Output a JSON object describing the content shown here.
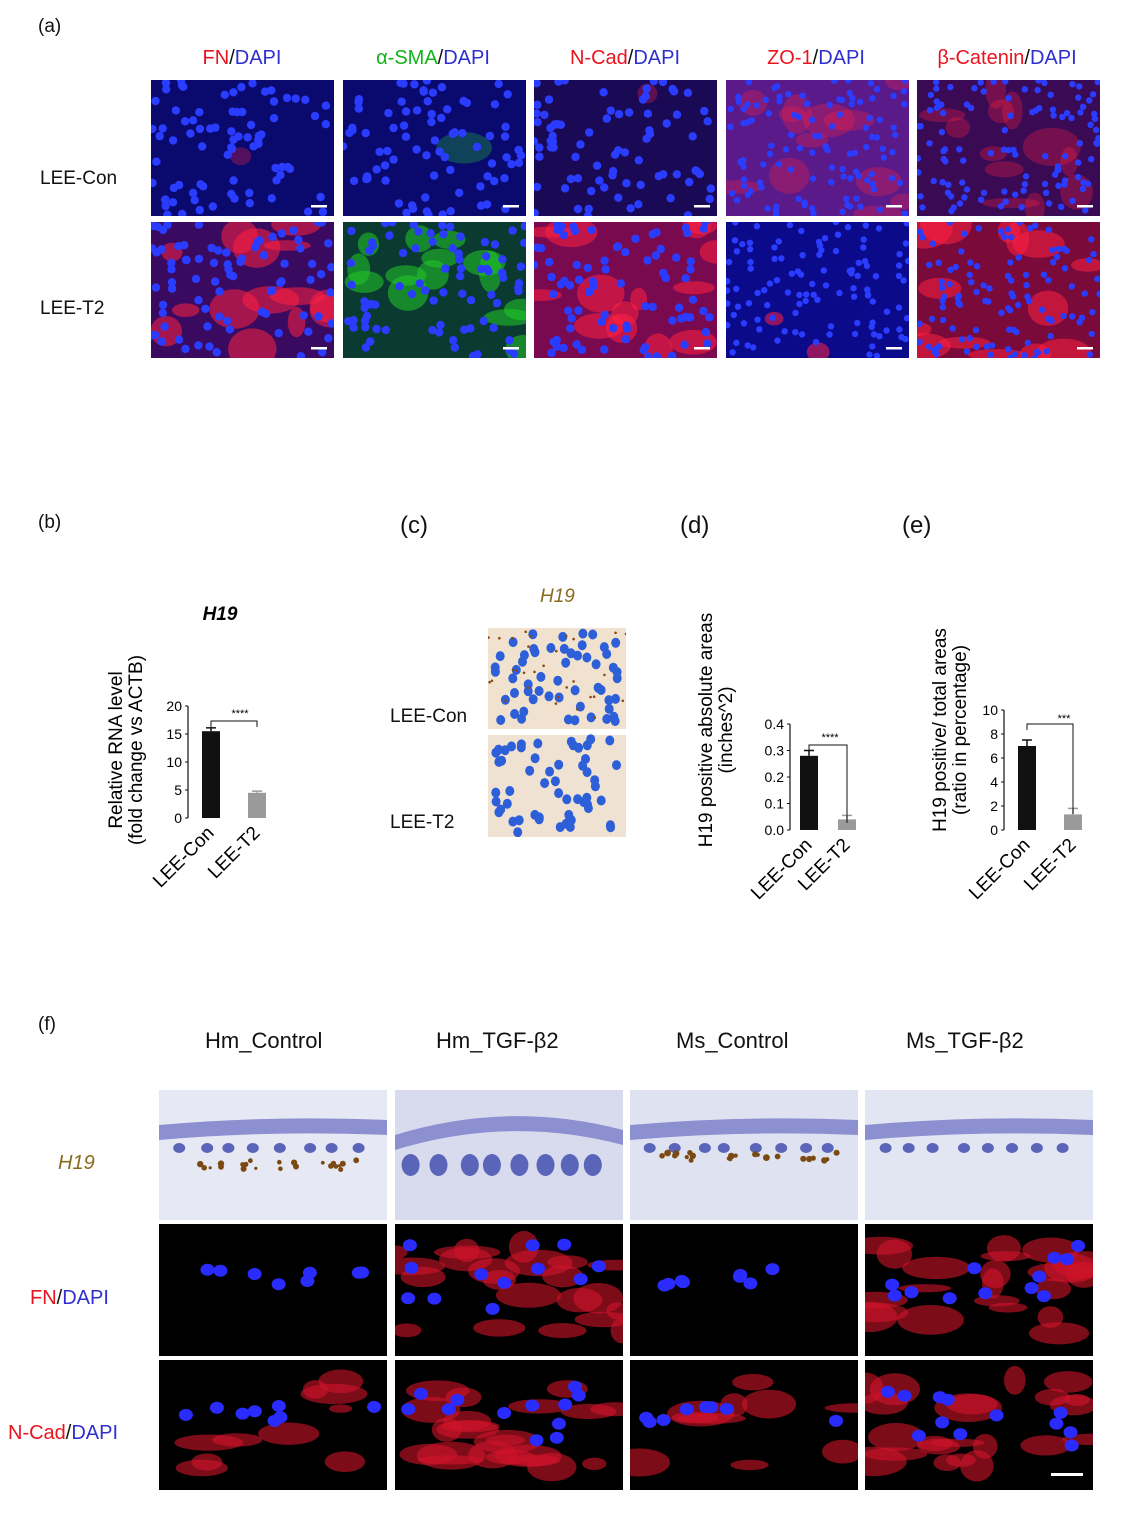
{
  "panel_a": {
    "letter": "(a)",
    "columns": [
      {
        "stain": "FN",
        "sep": "/",
        "dapi": "DAPI",
        "stain_color": "#e8141e"
      },
      {
        "stain": "α-SMA",
        "sep": "/",
        "dapi": "DAPI",
        "stain_color": "#12b41a"
      },
      {
        "stain": "N-Cad",
        "sep": "/",
        "dapi": "DAPI",
        "stain_color": "#e8141e"
      },
      {
        "stain": "ZO-1",
        "sep": "/",
        "dapi": "DAPI",
        "stain_color": "#e8141e"
      },
      {
        "stain": "β-Catenin",
        "sep": "/",
        "dapi": "DAPI",
        "stain_color": "#e8141e"
      }
    ],
    "rows": [
      "LEE-Con",
      "LEE-T2"
    ]
  },
  "panel_b": {
    "letter": "(b)",
    "gene": "H19",
    "ylabel_line1": "Relative RNA level",
    "ylabel_line2": "(fold change vs ACTB)",
    "significance": "****",
    "yticks": [
      "0",
      "5",
      "10",
      "15",
      "20"
    ]
  },
  "panel_c": {
    "letter": "(c)",
    "gene": "H19",
    "rows": [
      "LEE-Con",
      "LEE-T2"
    ]
  },
  "panel_d": {
    "letter": "(d)",
    "ylabel_line1": "H19 positive absolute areas",
    "ylabel_line2": "(inches^2)",
    "significance": "****",
    "yticks": [
      "0.0",
      "0.1",
      "0.2",
      "0.3",
      "0.4"
    ]
  },
  "panel_e": {
    "letter": "(e)",
    "ylabel_line1": "H19 positive/ total areas",
    "ylabel_line2": "(ratio in percentage)",
    "significance": "***",
    "yticks": [
      "0",
      "2",
      "4",
      "6",
      "8",
      "10"
    ]
  },
  "panel_f": {
    "letter": "(f)",
    "columns": [
      "Hm_Control",
      "Hm_TGF-β2",
      "Ms_Control",
      "Ms_TGF-β2"
    ],
    "row_h19": "H19",
    "row_fn": {
      "stain": "FN",
      "sep": "/",
      "dapi": "DAPI"
    },
    "row_ncad": {
      "stain": "N-Cad",
      "sep": "/",
      "dapi": "DAPI"
    }
  },
  "chart_data": [
    {
      "type": "bar",
      "panel": "b",
      "categories": [
        "LEE-Con",
        "LEE-T2"
      ],
      "values": [
        15.5,
        4.5
      ],
      "errors": [
        0.6,
        0.3
      ],
      "ylim": [
        0,
        20
      ],
      "title": "H19",
      "ylabel": "Relative RNA level (fold change vs ACTB)",
      "colors": [
        "#111111",
        "#9a9a9a"
      ]
    },
    {
      "type": "bar",
      "panel": "d",
      "categories": [
        "LEE-Con",
        "LEE-T2"
      ],
      "values": [
        0.28,
        0.04
      ],
      "errors": [
        0.02,
        0.015
      ],
      "ylim": [
        0,
        0.4
      ],
      "ylabel": "H19 positive absolute areas (inches^2)",
      "colors": [
        "#111111",
        "#9a9a9a"
      ]
    },
    {
      "type": "bar",
      "panel": "e",
      "categories": [
        "LEE-Con",
        "LEE-T2"
      ],
      "values": [
        7.0,
        1.3
      ],
      "errors": [
        0.5,
        0.5
      ],
      "ylim": [
        0,
        10
      ],
      "ylabel": "H19 positive/ total areas (ratio in percentage)",
      "colors": [
        "#111111",
        "#9a9a9a"
      ]
    }
  ]
}
